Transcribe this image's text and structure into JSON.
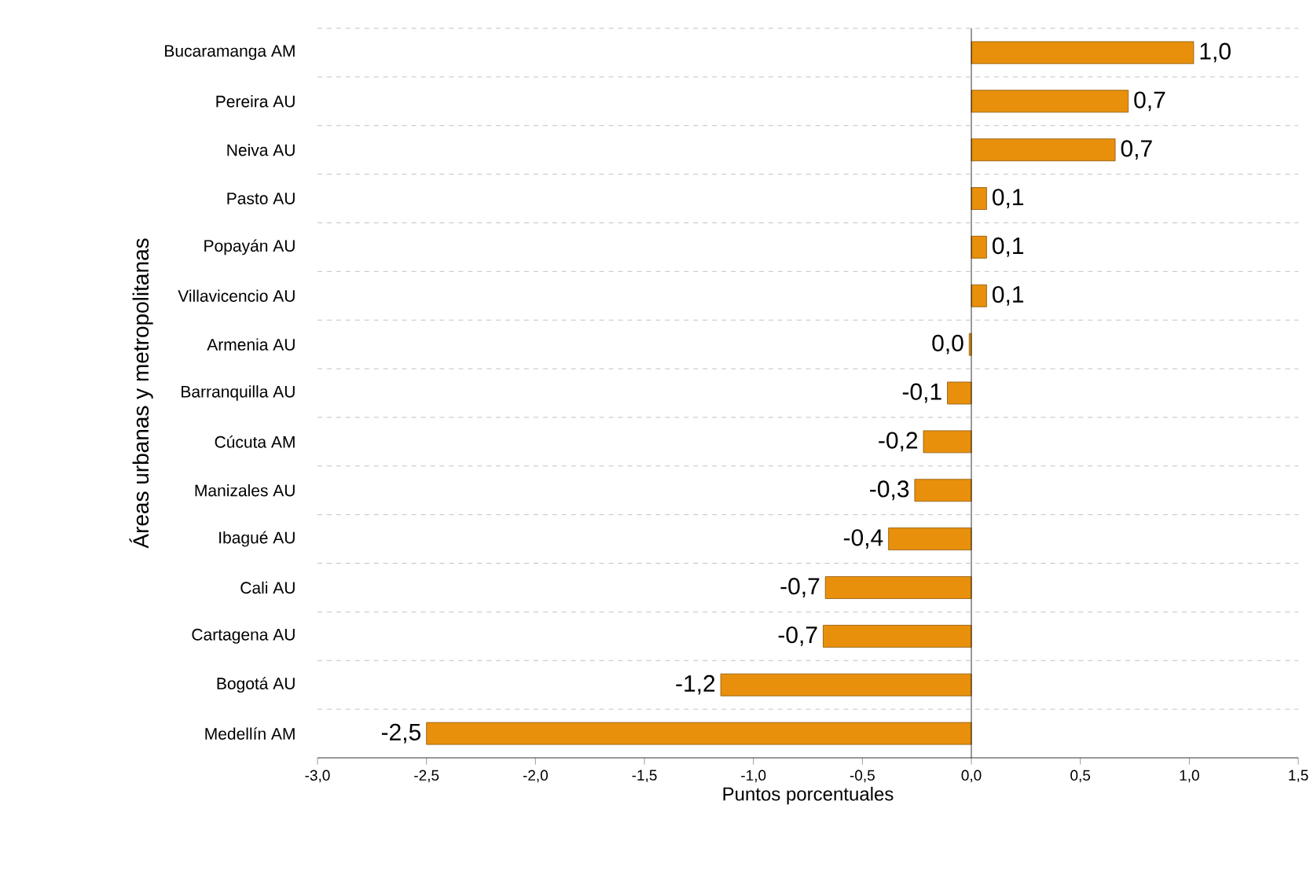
{
  "chart_data": {
    "type": "bar",
    "orientation": "horizontal",
    "categories": [
      "Bucaramanga AM",
      "Pereira AU",
      "Neiva AU",
      "Pasto AU",
      "Popayán AU",
      "Villavicencio AU",
      "Armenia AU",
      "Barranquilla AU",
      "Cúcuta AM",
      "Manizales AU",
      "Ibagué AU",
      "Cali AU",
      "Cartagena AU",
      "Bogotá AU",
      "Medellín AM"
    ],
    "values": [
      1.02,
      0.72,
      0.66,
      0.07,
      0.07,
      0.07,
      -0.01,
      -0.11,
      -0.22,
      -0.26,
      -0.38,
      -0.67,
      -0.68,
      -1.15,
      -2.5
    ],
    "value_labels": [
      "1,0",
      "0,7",
      "0,7",
      "0,1",
      "0,1",
      "0,1",
      "0,0",
      "-0,1",
      "-0,2",
      "-0,3",
      "-0,4",
      "-0,7",
      "-0,7",
      "-1,2",
      "-2,5"
    ],
    "color": "#e8900c",
    "xlabel": "Puntos porcentuales",
    "ylabel": "Áreas urbanas y metropolitanas",
    "xlim": [
      -3.0,
      1.5
    ],
    "xticks": [
      {
        "value": -3.0,
        "label": "-3,0"
      },
      {
        "value": -2.5,
        "label": "-2,5"
      },
      {
        "value": -2.0,
        "label": "-2,0"
      },
      {
        "value": -1.5,
        "label": "-1,5"
      },
      {
        "value": -1.0,
        "label": "-1,0"
      },
      {
        "value": -0.5,
        "label": "-0,5"
      },
      {
        "value": 0.0,
        "label": "0,0"
      },
      {
        "value": 0.5,
        "label": "0,5"
      },
      {
        "value": 1.0,
        "label": "1,0"
      },
      {
        "value": 1.5,
        "label": "1,5"
      }
    ],
    "grid": "y"
  }
}
